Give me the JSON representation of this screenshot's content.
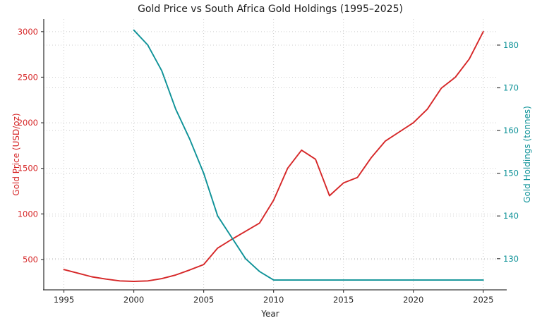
{
  "chart_data": {
    "type": "line",
    "title": "Gold Price vs South Africa Gold Holdings (1995–2025)",
    "xlabel": "Year",
    "grid": true,
    "grid_style": "dotted",
    "legend": "none",
    "x_range": [
      1993.56,
      2025.97
    ],
    "x_ticks": [
      1995,
      2000,
      2005,
      2010,
      2015,
      2020,
      2025
    ],
    "left_axis": {
      "label": "Gold Price (USD/oz)",
      "color": "#d62728",
      "ticks": [
        500,
        1000,
        1500,
        2000,
        2500,
        3000
      ],
      "range": [
        167,
        3138
      ]
    },
    "right_axis": {
      "label": "Gold Holdings (tonnes)",
      "color": "#0e9298",
      "ticks": [
        130,
        140,
        150,
        160,
        170,
        180
      ],
      "range": [
        122.7,
        186.1
      ]
    },
    "series": [
      {
        "name": "Gold Price (USD/oz)",
        "axis": "left",
        "color": "#d62728",
        "x": [
          1995,
          1996,
          1997,
          1998,
          1999,
          2000,
          2001,
          2002,
          2003,
          2004,
          2005,
          2006,
          2007,
          2008,
          2009,
          2010,
          2011,
          2012,
          2013,
          2014,
          2015,
          2016,
          2017,
          2018,
          2019,
          2020,
          2021,
          2022,
          2023,
          2024,
          2025
        ],
        "values": [
          390,
          350,
          310,
          285,
          265,
          260,
          265,
          290,
          330,
          385,
          445,
          625,
          720,
          810,
          900,
          1150,
          1500,
          1700,
          1600,
          1200,
          1340,
          1400,
          1620,
          1800,
          1900,
          2000,
          2150,
          2380,
          2500,
          2700,
          3000
        ]
      },
      {
        "name": "Gold Holdings (tonnes)",
        "axis": "right",
        "color": "#0e9298",
        "x": [
          2000,
          2001,
          2002,
          2003,
          2004,
          2005,
          2006,
          2007,
          2008,
          2009,
          2010,
          2011,
          2012,
          2013,
          2014,
          2015,
          2016,
          2017,
          2018,
          2019,
          2020,
          2021,
          2022,
          2023,
          2024,
          2025
        ],
        "values": [
          183.5,
          180,
          174,
          165,
          158,
          150,
          140,
          135,
          130,
          127,
          125,
          125,
          125,
          125,
          125,
          125,
          125,
          125,
          125,
          125,
          125,
          125,
          125,
          125,
          125,
          125
        ]
      }
    ]
  }
}
